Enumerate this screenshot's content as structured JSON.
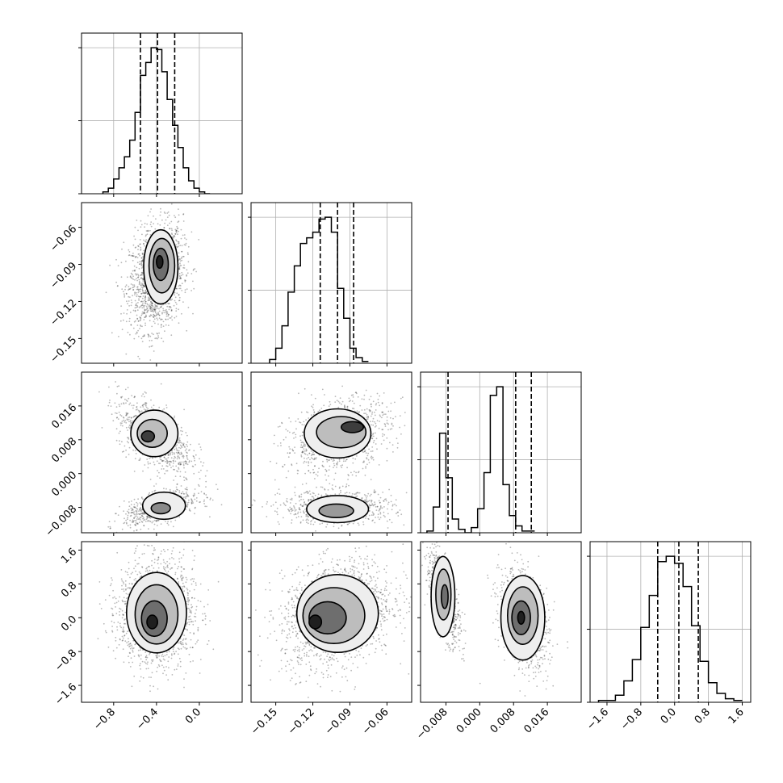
{
  "chart_data": {
    "type": "corner",
    "parameters": [
      {
        "index": 0,
        "range": [
          -1.1,
          0.4
        ],
        "ticks": [
          -0.8,
          -0.4,
          0.0
        ],
        "tick_labels": [
          "−0.8",
          "−0.4",
          "0.0"
        ],
        "quantiles": [
          -0.55,
          -0.39,
          -0.23
        ],
        "hist_bins_start": -0.9,
        "hist_bin_width": 0.05,
        "hist_counts": [
          1,
          3,
          8,
          14,
          20,
          29,
          44,
          64,
          71,
          79,
          78,
          66,
          51,
          37,
          25,
          14,
          7,
          3,
          1,
          0
        ]
      },
      {
        "index": 1,
        "range": [
          -0.17,
          -0.04
        ],
        "ticks": [
          -0.15,
          -0.12,
          -0.09,
          -0.06
        ],
        "tick_labels": [
          "−0.15",
          "−0.12",
          "−0.09",
          "−0.06"
        ],
        "quantiles": [
          -0.114,
          -0.1,
          -0.087
        ],
        "hist_bins_start": -0.155,
        "hist_bin_width": 0.005,
        "hist_counts": [
          2,
          8,
          20,
          38,
          52,
          64,
          67,
          70,
          77,
          78,
          70,
          40,
          24,
          8,
          3,
          1
        ]
      },
      {
        "index": 2,
        "range": [
          -0.014,
          0.024
        ],
        "ticks": [
          -0.008,
          0.0,
          0.008,
          0.016
        ],
        "tick_labels": [
          "−0.008",
          "0.000",
          "0.008",
          "0.016"
        ],
        "quantiles": [
          -0.0075,
          0.0085,
          0.0122
        ],
        "hist_bins_start": -0.0125,
        "hist_bin_width": 0.0015,
        "hist_counts": [
          1,
          15,
          58,
          32,
          8,
          2,
          0,
          3,
          14,
          35,
          80,
          85,
          28,
          10,
          4,
          1,
          1
        ]
      },
      {
        "index": 3,
        "range": [
          -2.0,
          1.8
        ],
        "ticks": [
          -1.6,
          -0.8,
          0.0,
          0.8,
          1.6
        ],
        "tick_labels": [
          "−1.6",
          "−0.8",
          "0.0",
          "0.8",
          "1.6"
        ],
        "quantiles": [
          -0.4,
          0.1,
          0.56
        ],
        "hist_bins_start": -1.8,
        "hist_bin_width": 0.2,
        "hist_counts": [
          1,
          1,
          4,
          12,
          24,
          42,
          60,
          79,
          82,
          78,
          65,
          43,
          23,
          11,
          5,
          2,
          1
        ]
      }
    ],
    "pairs": [
      {
        "row": 1,
        "col": 0,
        "spread": [
          0.1,
          0.012
        ],
        "clusters": [
          {
            "cx": -0.4,
            "cy": -0.1,
            "sx": 0.1,
            "sy": 0.017,
            "rho": 0.2,
            "weight": 1.0
          }
        ],
        "contour_levels": [
          {
            "cx": -0.36,
            "cy": -0.092,
            "rx": 0.16,
            "ry": 0.03,
            "fill": "#eeeeee"
          },
          {
            "cx": -0.35,
            "cy": -0.091,
            "rx": 0.12,
            "ry": 0.022,
            "fill": "#bdbdbd"
          },
          {
            "cx": -0.36,
            "cy": -0.09,
            "rx": 0.07,
            "ry": 0.013,
            "fill": "#6e6e6e"
          },
          {
            "cx": -0.37,
            "cy": -0.088,
            "rx": 0.03,
            "ry": 0.005,
            "fill": "#1f1f1f"
          }
        ]
      },
      {
        "row": 2,
        "col": 0,
        "spread": [
          0.1,
          0.003
        ],
        "clusters": [
          {
            "cx": -0.42,
            "cy": 0.009,
            "sx": 0.14,
            "sy": 0.0035,
            "rho": -0.55,
            "weight": 0.55
          },
          {
            "cx": -0.35,
            "cy": -0.008,
            "sx": 0.14,
            "sy": 0.0016,
            "rho": 0.55,
            "weight": 0.45
          }
        ],
        "contour_levels": [
          {
            "cx": -0.42,
            "cy": 0.0095,
            "rx": 0.22,
            "ry": 0.0055,
            "fill": "#eeeeee"
          },
          {
            "cx": -0.44,
            "cy": 0.0095,
            "rx": 0.14,
            "ry": 0.0033,
            "fill": "#bdbdbd"
          },
          {
            "cx": -0.48,
            "cy": 0.0088,
            "rx": 0.06,
            "ry": 0.0013,
            "fill": "#3d3d3d"
          },
          {
            "cx": -0.33,
            "cy": -0.0076,
            "rx": 0.2,
            "ry": 0.0032,
            "fill": "#eeeeee"
          },
          {
            "cx": -0.36,
            "cy": -0.0082,
            "rx": 0.09,
            "ry": 0.0013,
            "fill": "#8a8a8a"
          }
        ]
      },
      {
        "row": 2,
        "col": 1,
        "spread": [
          0.006,
          0.003
        ],
        "clusters": [
          {
            "cx": -0.1,
            "cy": 0.009,
            "sx": 0.017,
            "sy": 0.0035,
            "rho": 0.3,
            "weight": 0.55
          },
          {
            "cx": -0.1,
            "cy": -0.008,
            "sx": 0.018,
            "sy": 0.0016,
            "rho": 0.0,
            "weight": 0.45
          }
        ],
        "contour_levels": [
          {
            "cx": -0.1,
            "cy": 0.0095,
            "rx": 0.027,
            "ry": 0.0058,
            "fill": "#eeeeee"
          },
          {
            "cx": -0.097,
            "cy": 0.0098,
            "rx": 0.02,
            "ry": 0.0037,
            "fill": "#bdbdbd"
          },
          {
            "cx": -0.088,
            "cy": 0.011,
            "rx": 0.009,
            "ry": 0.0013,
            "fill": "#3d3d3d"
          },
          {
            "cx": -0.1,
            "cy": -0.0084,
            "rx": 0.025,
            "ry": 0.0032,
            "fill": "#eeeeee"
          },
          {
            "cx": -0.101,
            "cy": -0.0088,
            "rx": 0.014,
            "ry": 0.0016,
            "fill": "#9a9a9a"
          }
        ]
      },
      {
        "row": 3,
        "col": 0,
        "spread": [
          0.1,
          0.25
        ],
        "clusters": [
          {
            "cx": -0.4,
            "cy": 0.1,
            "sx": 0.14,
            "sy": 0.5,
            "rho": 0.0,
            "weight": 1.0
          }
        ],
        "contour_levels": [
          {
            "cx": -0.4,
            "cy": 0.12,
            "rx": 0.28,
            "ry": 0.95,
            "fill": "#eeeeee"
          },
          {
            "cx": -0.4,
            "cy": 0.08,
            "rx": 0.2,
            "ry": 0.7,
            "fill": "#bdbdbd"
          },
          {
            "cx": -0.42,
            "cy": -0.02,
            "rx": 0.12,
            "ry": 0.42,
            "fill": "#6e6e6e"
          },
          {
            "cx": -0.44,
            "cy": -0.1,
            "rx": 0.05,
            "ry": 0.16,
            "fill": "#1f1f1f"
          }
        ]
      },
      {
        "row": 3,
        "col": 1,
        "spread": [
          0.006,
          0.25
        ],
        "clusters": [
          {
            "cx": -0.1,
            "cy": 0.1,
            "sx": 0.018,
            "sy": 0.5,
            "rho": 0.25,
            "weight": 1.0
          }
        ],
        "contour_levels": [
          {
            "cx": -0.1,
            "cy": 0.1,
            "rx": 0.033,
            "ry": 0.92,
            "fill": "#eeeeee"
          },
          {
            "cx": -0.103,
            "cy": 0.05,
            "rx": 0.025,
            "ry": 0.66,
            "fill": "#bdbdbd"
          },
          {
            "cx": -0.108,
            "cy": 0.0,
            "rx": 0.015,
            "ry": 0.38,
            "fill": "#6e6e6e"
          },
          {
            "cx": -0.118,
            "cy": -0.1,
            "rx": 0.005,
            "ry": 0.16,
            "fill": "#1f1f1f"
          }
        ]
      },
      {
        "row": 3,
        "col": 2,
        "spread": [
          0.0012,
          0.25
        ],
        "clusters": [
          {
            "cx": -0.0085,
            "cy": 0.5,
            "sx": 0.0016,
            "sy": 0.45,
            "rho": -0.7,
            "weight": 0.38
          },
          {
            "cx": 0.0105,
            "cy": -0.05,
            "sx": 0.0023,
            "sy": 0.45,
            "rho": -0.35,
            "weight": 0.62
          }
        ],
        "contour_levels": [
          {
            "cx": -0.0087,
            "cy": 0.5,
            "rx": 0.0028,
            "ry": 0.95,
            "fill": "#eeeeee"
          },
          {
            "cx": -0.0086,
            "cy": 0.55,
            "rx": 0.0018,
            "ry": 0.6,
            "fill": "#bdbdbd"
          },
          {
            "cx": -0.0083,
            "cy": 0.5,
            "rx": 0.0008,
            "ry": 0.28,
            "fill": "#6e6e6e"
          },
          {
            "cx": 0.0102,
            "cy": 0.0,
            "rx": 0.0052,
            "ry": 1.0,
            "fill": "#eeeeee"
          },
          {
            "cx": 0.0102,
            "cy": 0.05,
            "rx": 0.0036,
            "ry": 0.68,
            "fill": "#bdbdbd"
          },
          {
            "cx": 0.0098,
            "cy": 0.0,
            "rx": 0.0022,
            "ry": 0.4,
            "fill": "#6e6e6e"
          },
          {
            "cx": 0.0098,
            "cy": 0.0,
            "rx": 0.0008,
            "ry": 0.15,
            "fill": "#1f1f1f"
          }
        ]
      }
    ],
    "grid": true,
    "quantile_style": "dashed",
    "colors": {
      "scatter": "#000000",
      "contour_line": "#000000",
      "hist_line": "#000000",
      "grid": "#b0b0b0"
    }
  }
}
